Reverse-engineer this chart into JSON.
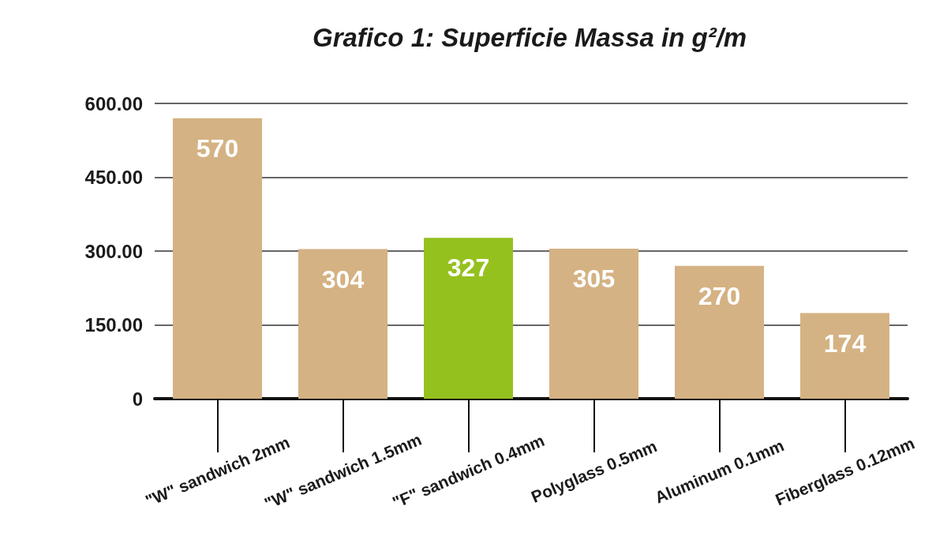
{
  "chart_data": {
    "type": "bar",
    "title": "Grafico 1: Superficie Massa in g²/m",
    "categories": [
      "\"W\" sandwich 2mm",
      "\"W\" sandwich 1.5mm",
      "\"F\" sandwich 0.4mm",
      "Polyglass 0.5mm",
      "Aluminum 0.1mm",
      "Fiberglass 0.12mm"
    ],
    "values": [
      570,
      304,
      327,
      305,
      270,
      174
    ],
    "colors": [
      "#d4b283",
      "#d4b283",
      "#95c11f",
      "#d4b283",
      "#d4b283",
      "#d4b283"
    ],
    "ylim": [
      0,
      600
    ],
    "yticks": [
      0,
      {
        "value": 150,
        "label": "150.00"
      },
      {
        "value": 300,
        "label": "300.00"
      },
      {
        "value": 450,
        "label": "450.00"
      },
      {
        "value": 600,
        "label": "600.00"
      }
    ],
    "grid": "y",
    "data_labels": true
  }
}
